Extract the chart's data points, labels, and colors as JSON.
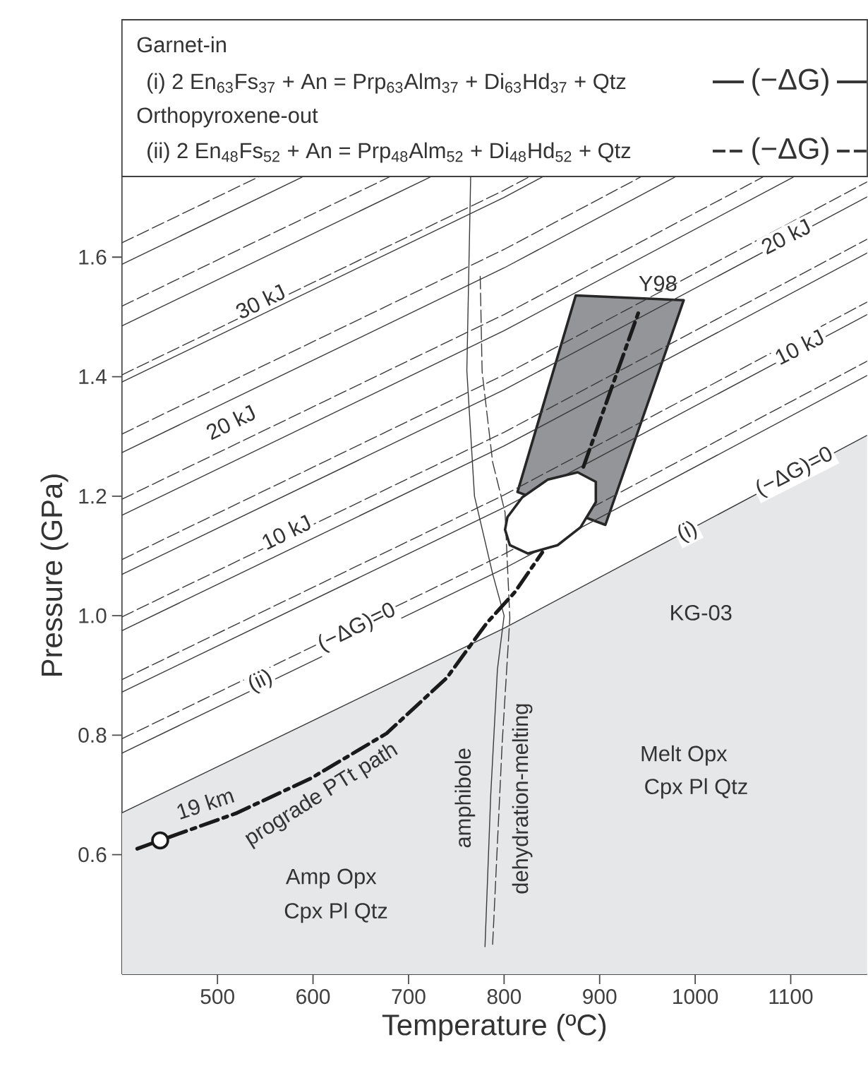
{
  "chart_data": {
    "type": "line",
    "xlabel": "Temperature (ºC)",
    "ylabel": "Pressure (GPa)",
    "xlim": [
      400,
      1180
    ],
    "ylim": [
      0.4,
      1.735
    ],
    "xticks": [
      500,
      600,
      700,
      800,
      900,
      1000,
      1100
    ],
    "yticks": [
      0.6,
      0.8,
      {
        "value": 1.0,
        "label": "1.0"
      },
      1.2,
      1.4,
      1.6
    ],
    "grid": false,
    "legend": "top",
    "series": [
      {
        "type": "area",
        "name": "(−ΔG)",
        "color": "#e6e7e8",
        "line_style": "solid",
        "x": [
          400,
          800,
          1180
        ],
        "values": [
          0.67,
          0.979,
          1.302
        ]
      },
      {
        "type": "area",
        "color": "#939598",
        "line_style": "solid",
        "x": [
          875,
          988,
          906,
          814,
          875
        ],
        "values": [
          1.536,
          1.528,
          1.152,
          1.207,
          1.536
        ]
      },
      {
        "color": "#3a3a3a",
        "line_style": "solid",
        "x": [
          400,
          800,
          1180
        ],
        "values": [
          0.77,
          1.079,
          1.402
        ]
      },
      {
        "color": "#3a3a3a",
        "line_style": "solid",
        "x": [
          400,
          800,
          1180
        ],
        "values": [
          0.872,
          1.181,
          1.504
        ]
      },
      {
        "color": "#3a3a3a",
        "line_style": "solid",
        "x": [
          400,
          800,
          1180
        ],
        "values": [
          0.975,
          1.284,
          1.607
        ]
      },
      {
        "color": "#3a3a3a",
        "line_style": "solid",
        "x": [
          400,
          800,
          1180
        ],
        "values": [
          1.069,
          1.378,
          1.701
        ]
      },
      {
        "color": "#3a3a3a",
        "line_style": "solid",
        "x": [
          400,
          800,
          1104
        ],
        "values": [
          1.168,
          1.477,
          1.735
        ]
      },
      {
        "color": "#3a3a3a",
        "line_style": "solid",
        "x": [
          400,
          800,
          980
        ],
        "values": [
          1.273,
          1.582,
          1.735
        ]
      },
      {
        "color": "#3a3a3a",
        "line_style": "solid",
        "x": [
          400,
          800,
          841
        ],
        "values": [
          1.391,
          1.7,
          1.735
        ]
      },
      {
        "color": "#3a3a3a",
        "line_style": "solid",
        "x": [
          400,
          724
        ],
        "values": [
          1.485,
          1.735
        ]
      },
      {
        "color": "#3a3a3a",
        "line_style": "solid",
        "x": [
          400,
          590
        ],
        "values": [
          1.588,
          1.735
        ]
      },
      {
        "name": "(−ΔG)",
        "color": "#3a3a3a",
        "line_style": "dashed",
        "x": [
          400,
          800,
          1180
        ],
        "values": [
          0.794,
          1.103,
          1.426
        ]
      },
      {
        "color": "#3a3a3a",
        "line_style": "dashed",
        "x": [
          400,
          800,
          1180
        ],
        "values": [
          0.893,
          1.202,
          1.525
        ]
      },
      {
        "color": "#3a3a3a",
        "line_style": "dashed",
        "x": [
          400,
          800,
          1180
        ],
        "values": [
          0.998,
          1.307,
          1.63
        ]
      },
      {
        "color": "#3a3a3a",
        "line_style": "dashed",
        "x": [
          400,
          800,
          1180
        ],
        "values": [
          1.094,
          1.403,
          1.726
        ]
      },
      {
        "color": "#3a3a3a",
        "line_style": "dashed",
        "x": [
          400,
          800,
          1072
        ],
        "values": [
          1.195,
          1.504,
          1.735
        ]
      },
      {
        "color": "#3a3a3a",
        "line_style": "dashed",
        "x": [
          400,
          800,
          944
        ],
        "values": [
          1.304,
          1.613,
          1.735
        ]
      },
      {
        "color": "#3a3a3a",
        "line_style": "dashed",
        "x": [
          400,
          800,
          827
        ],
        "values": [
          1.403,
          1.712,
          1.735
        ]
      },
      {
        "color": "#3a3a3a",
        "line_style": "dashed",
        "x": [
          400,
          681
        ],
        "values": [
          1.518,
          1.735
        ]
      },
      {
        "color": "#3a3a3a",
        "line_style": "dashed",
        "x": [
          400,
          544
        ],
        "values": [
          1.624,
          1.735
        ]
      },
      {
        "color": "#3a3a3a",
        "line_style": "solid",
        "x": [
          765,
          761,
          769,
          788,
          800,
          793,
          786,
          780
        ],
        "values": [
          1.735,
          1.41,
          1.2,
          1.07,
          1.0,
          0.91,
          0.7,
          0.446
        ]
      },
      {
        "color": "#3a3a3a",
        "line_style": "dashed",
        "x": [
          775,
          777,
          788,
          801,
          806,
          798,
          788
        ],
        "values": [
          1.568,
          1.408,
          1.257,
          1.173,
          0.996,
          0.787,
          0.45
        ]
      },
      {
        "color": "#1a1a1a",
        "line_style": "dashdot",
        "x": [
          416,
          440,
          519,
          598,
          677,
          740,
          782,
          811,
          840
        ],
        "values": [
          0.61,
          0.624,
          0.669,
          0.728,
          0.803,
          0.896,
          0.988,
          1.039,
          1.106
        ]
      },
      {
        "color": "#1a1a1a",
        "line_style": "dashdot",
        "x": [
          883,
          941
        ],
        "values": [
          1.249,
          1.509
        ]
      },
      {
        "type": "area",
        "color": "#ffffff",
        "line_style": "solid",
        "x": [
          803.5,
          819,
          846,
          877,
          896,
          896,
          880,
          856,
          825,
          806,
          801,
          803.5
        ],
        "values": [
          1.165,
          1.198,
          1.228,
          1.24,
          1.224,
          1.19,
          1.148,
          1.118,
          1.104,
          1.118,
          1.144,
          1.165
        ]
      },
      {
        "type": "scatter",
        "marker": "circle",
        "color": "#1a1a1a",
        "x": [
          440
        ],
        "values": [
          0.624
        ]
      }
    ],
    "annotations": [
      {
        "text": "30 kJ",
        "x": 545,
        "y": 1.526
      },
      {
        "text": "20 kJ",
        "x": 514,
        "y": 1.324
      },
      {
        "text": "10 kJ",
        "x": 572,
        "y": 1.14
      },
      {
        "text": "20 kJ",
        "x": 1095,
        "y": 1.635
      },
      {
        "text": "10 kJ",
        "x": 1109,
        "y": 1.45
      },
      {
        "text": "(i)",
        "x": 992,
        "y": 1.14
      },
      {
        "text": "(−ΔG)=0",
        "x": 1104,
        "y": 1.24
      },
      {
        "text": "(ii)",
        "x": 545,
        "y": 0.89
      },
      {
        "text": "(−ΔG)=0",
        "x": 646,
        "y": 0.98
      },
      "Y98",
      "KG-03",
      "19 km",
      "prograde PTt path",
      "amphibole",
      "dehydration-melting",
      "Amp  Opx",
      "Cpx Pl Qtz",
      "Melt Opx",
      "Cpx Pl Qtz",
      "Garnet-in",
      "(i) 2 En$_{63}$Fs$_{37}$ + An = Prp$_{63}$Alm$_{37}$ + Di$_{63}$Hd$_{37}$ + Qtz",
      "Orthopyroxene-out",
      "(ii) 2 En$_{48}$Fs$_{52}$ + An = Prp$_{48}$Alm$_{52}$ + Di$_{48}$Hd$_{52}$ + Qtz"
    ]
  }
}
